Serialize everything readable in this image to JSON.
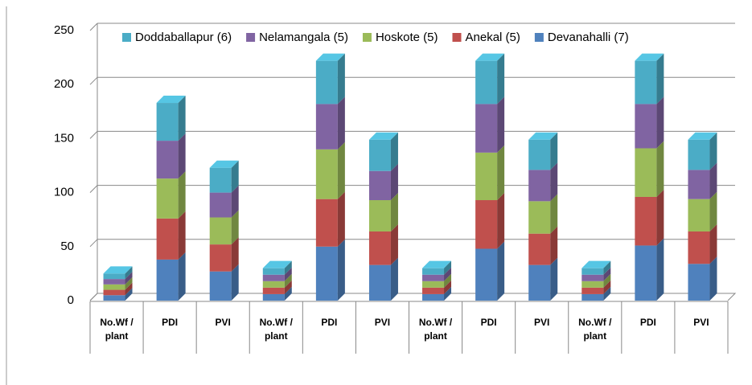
{
  "chart_data": {
    "type": "bar",
    "stacked": true,
    "three_d": true,
    "categories": [
      "No.Wf / plant",
      "PDI",
      "PVI",
      "No.Wf / plant",
      "PDI",
      "PVI",
      "No.Wf / plant",
      "PDI",
      "PVI",
      "No.Wf / plant",
      "PDI",
      "PVI"
    ],
    "series": [
      {
        "name": "Devanahalli (7)",
        "color": "#4f81bd",
        "values": [
          5,
          38,
          27,
          6,
          50,
          33,
          6,
          48,
          33,
          6,
          51,
          34
        ]
      },
      {
        "name": "Anekal (5)",
        "color": "#c0504d",
        "values": [
          5,
          38,
          25,
          6,
          44,
          31,
          6,
          45,
          29,
          6,
          45,
          30
        ]
      },
      {
        "name": "Hoskote (5)",
        "color": "#9bbb59",
        "values": [
          5,
          37,
          25,
          6,
          46,
          29,
          6,
          44,
          30,
          6,
          45,
          30
        ]
      },
      {
        "name": "Nelamangala (5)",
        "color": "#8064a2",
        "values": [
          5,
          35,
          23,
          6,
          42,
          27,
          6,
          45,
          29,
          6,
          41,
          27
        ]
      },
      {
        "name": "Doddaballapur (6)",
        "color": "#4bacc6",
        "values": [
          5,
          35,
          23,
          6,
          40,
          29,
          6,
          40,
          28,
          6,
          40,
          28
        ]
      }
    ],
    "ylim": [
      0,
      250
    ],
    "yticks": [
      0,
      50,
      100,
      150,
      200,
      250
    ],
    "grid": true,
    "legend": "top"
  }
}
